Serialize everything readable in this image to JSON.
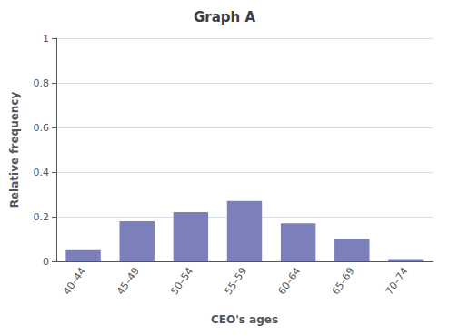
{
  "chart_data": {
    "type": "bar",
    "title": "Graph A",
    "xlabel": "CEO's ages",
    "ylabel": "Relative frequency",
    "categories": [
      "40–44",
      "45–49",
      "50–54",
      "55–59",
      "60–64",
      "65–69",
      "70–74"
    ],
    "values": [
      0.05,
      0.18,
      0.22,
      0.27,
      0.17,
      0.1,
      0.01
    ],
    "color": "#7b7fba",
    "ylim": [
      0,
      1
    ],
    "yticks": [
      0,
      0.2,
      0.4,
      0.6,
      0.8,
      1
    ],
    "grid": true
  }
}
